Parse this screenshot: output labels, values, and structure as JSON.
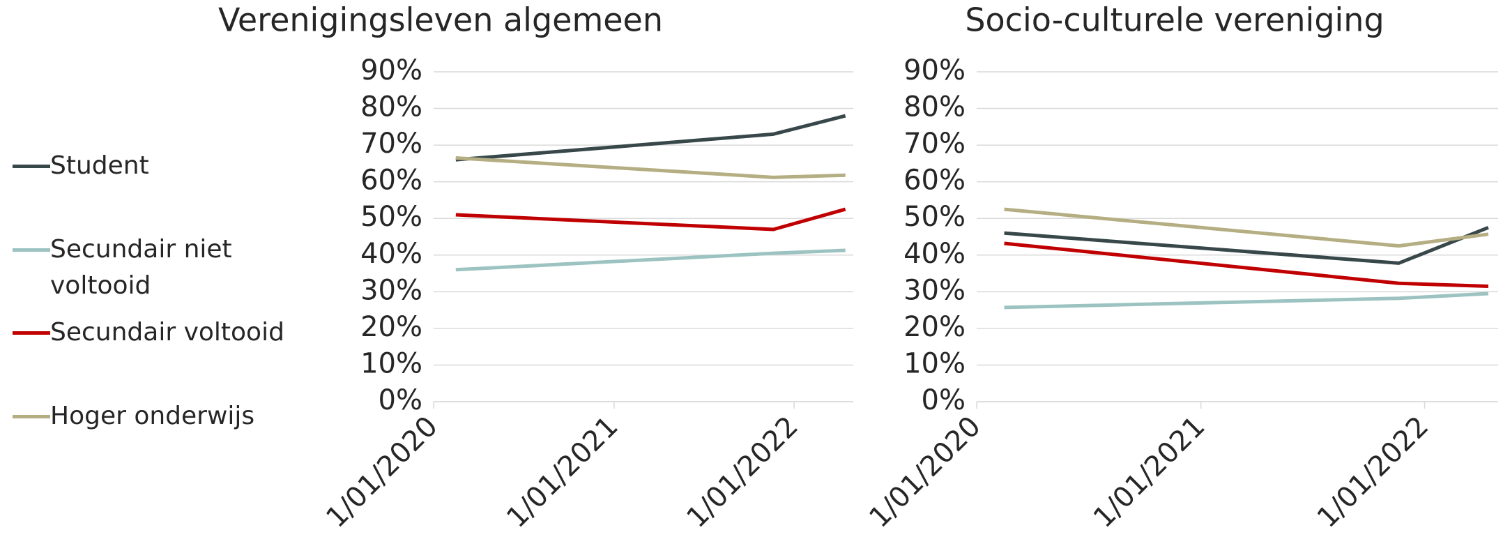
{
  "chart_data": [
    {
      "type": "line",
      "title": "Verenigingsleven algemeen",
      "x": [
        "2020-02-15",
        "2021-11-20",
        "2022-04-15"
      ],
      "xlim": [
        "2020-01-01",
        "2022-05-01"
      ],
      "xticks": [
        {
          "value": "2020-01-01",
          "label": "1/01/2020"
        },
        {
          "value": "2021-01-01",
          "label": "1/01/2021"
        },
        {
          "value": "2022-01-01",
          "label": "1/01/2022"
        }
      ],
      "ylim": [
        0,
        90
      ],
      "yticks": [
        {
          "value": 0,
          "label": "0%"
        },
        {
          "value": 10,
          "label": "10%"
        },
        {
          "value": 20,
          "label": "20%"
        },
        {
          "value": 30,
          "label": "30%"
        },
        {
          "value": 40,
          "label": "40%"
        },
        {
          "value": 50,
          "label": "50%"
        },
        {
          "value": 60,
          "label": "60%"
        },
        {
          "value": 70,
          "label": "70%"
        },
        {
          "value": 80,
          "label": "80%"
        },
        {
          "value": 90,
          "label": "90%"
        }
      ],
      "grid": true,
      "series": [
        {
          "name": "Student",
          "color": "#37474a",
          "values": [
            66,
            73,
            78
          ]
        },
        {
          "name": "Secundair niet voltooid",
          "color": "#9cc3c1",
          "values": [
            36,
            40.5,
            41.3
          ]
        },
        {
          "name": "Secundair voltooid",
          "color": "#c00000",
          "values": [
            51,
            47,
            52.5
          ]
        },
        {
          "name": "Hoger onderwijs",
          "color": "#b5ae83",
          "values": [
            66.5,
            61.2,
            61.8
          ]
        }
      ]
    },
    {
      "type": "line",
      "title": "Socio-culturele vereniging",
      "x": [
        "2020-02-15",
        "2021-11-20",
        "2022-04-15"
      ],
      "xlim": [
        "2020-01-01",
        "2022-05-01"
      ],
      "xticks": [
        {
          "value": "2020-01-01",
          "label": "1/01/2020"
        },
        {
          "value": "2021-01-01",
          "label": "1/01/2021"
        },
        {
          "value": "2022-01-01",
          "label": "1/01/2022"
        }
      ],
      "ylim": [
        0,
        90
      ],
      "yticks": [
        {
          "value": 0,
          "label": "0%"
        },
        {
          "value": 10,
          "label": "10%"
        },
        {
          "value": 20,
          "label": "20%"
        },
        {
          "value": 30,
          "label": "30%"
        },
        {
          "value": 40,
          "label": "40%"
        },
        {
          "value": 50,
          "label": "50%"
        },
        {
          "value": 60,
          "label": "60%"
        },
        {
          "value": 70,
          "label": "70%"
        },
        {
          "value": 80,
          "label": "80%"
        },
        {
          "value": 90,
          "label": "90%"
        }
      ],
      "grid": true,
      "series": [
        {
          "name": "Student",
          "color": "#37474a",
          "values": [
            46,
            37.8,
            47.5
          ]
        },
        {
          "name": "Secundair niet voltooid",
          "color": "#9cc3c1",
          "values": [
            25.7,
            28.2,
            29.5
          ]
        },
        {
          "name": "Secundair voltooid",
          "color": "#c00000",
          "values": [
            43.2,
            32.3,
            31.5
          ]
        },
        {
          "name": "Hoger onderwijs",
          "color": "#b5ae83",
          "values": [
            52.5,
            42.5,
            45.7
          ]
        }
      ]
    }
  ]
}
